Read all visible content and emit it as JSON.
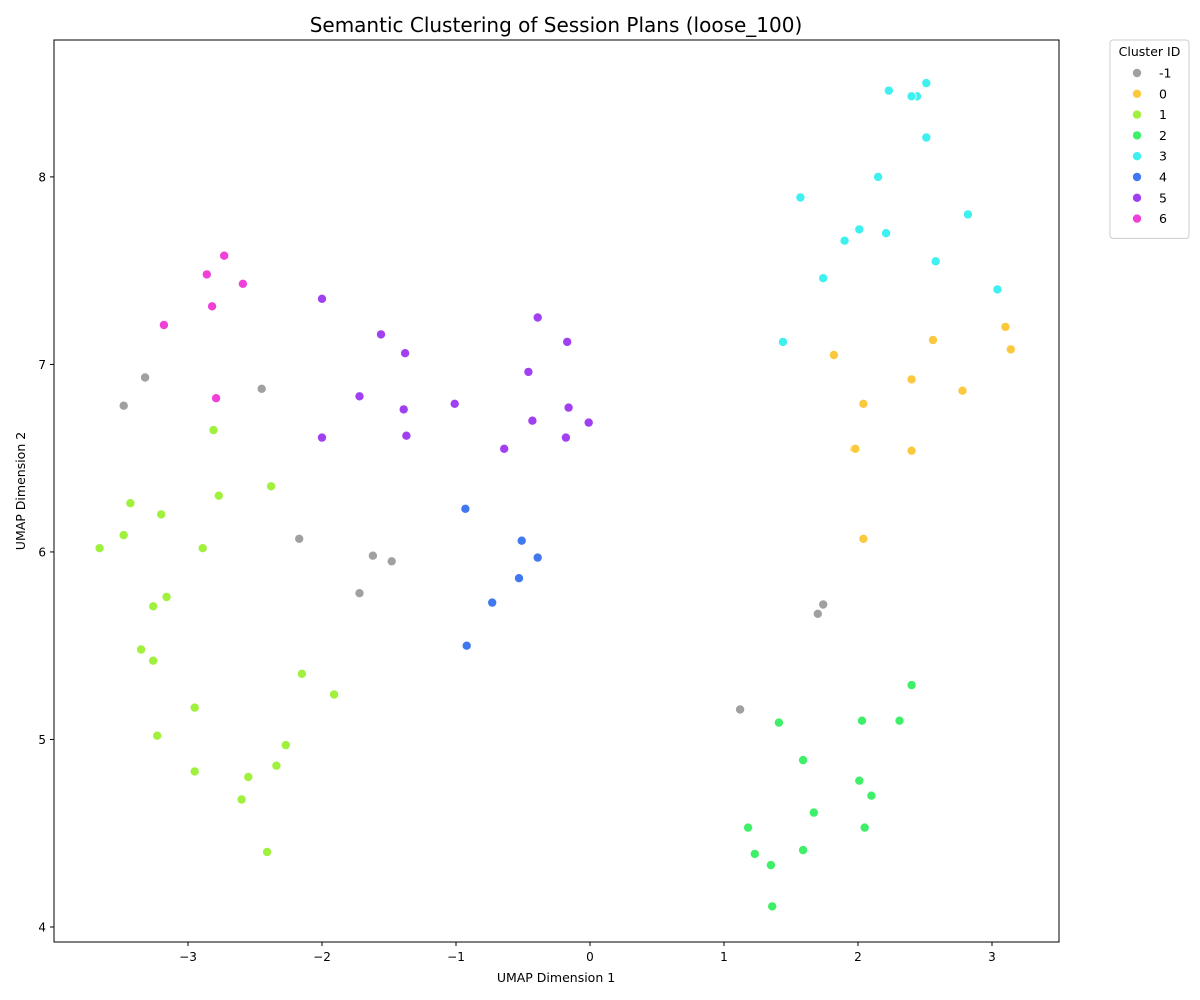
{
  "chart_data": {
    "type": "scatter",
    "title": "Semantic Clustering of Session Plans (loose_100)",
    "xlabel": "UMAP Dimension 1",
    "ylabel": "UMAP Dimension 2",
    "xlim": [
      -4.0,
      3.5
    ],
    "ylim": [
      3.92,
      8.73
    ],
    "xticks": [
      -3,
      -2,
      -1,
      0,
      1,
      2,
      3
    ],
    "yticks": [
      4,
      5,
      6,
      7,
      8
    ],
    "grid": false,
    "legend": {
      "title": "Cluster ID",
      "placement": "outside-top-right"
    },
    "series": [
      {
        "name": "-1",
        "color": "#a0a0a0",
        "points": [
          [
            -3.48,
            6.78
          ],
          [
            -3.32,
            6.93
          ],
          [
            -2.45,
            6.87
          ],
          [
            -2.17,
            6.07
          ],
          [
            -1.62,
            5.98
          ],
          [
            -1.48,
            5.95
          ],
          [
            -1.72,
            5.78
          ],
          [
            1.74,
            5.72
          ],
          [
            1.7,
            5.67
          ],
          [
            1.12,
            5.16
          ]
        ]
      },
      {
        "name": "0",
        "color": "#fbc83e",
        "points": [
          [
            3.1,
            7.2
          ],
          [
            3.14,
            7.08
          ],
          [
            2.56,
            7.13
          ],
          [
            1.82,
            7.05
          ],
          [
            2.4,
            6.92
          ],
          [
            2.78,
            6.86
          ],
          [
            2.04,
            6.79
          ],
          [
            1.97,
            6.55
          ],
          [
            1.98,
            6.55
          ],
          [
            2.4,
            6.54
          ],
          [
            2.04,
            6.07
          ]
        ]
      },
      {
        "name": "1",
        "color": "#a0f03e",
        "points": [
          [
            -2.81,
            6.65
          ],
          [
            -2.38,
            6.35
          ],
          [
            -2.77,
            6.3
          ],
          [
            -3.43,
            6.26
          ],
          [
            -3.2,
            6.2
          ],
          [
            -3.48,
            6.09
          ],
          [
            -3.66,
            6.02
          ],
          [
            -2.89,
            6.02
          ],
          [
            -3.16,
            5.76
          ],
          [
            -3.26,
            5.71
          ],
          [
            -3.35,
            5.48
          ],
          [
            -3.26,
            5.42
          ],
          [
            -2.15,
            5.35
          ],
          [
            -1.91,
            5.24
          ],
          [
            -2.95,
            5.17
          ],
          [
            -3.23,
            5.02
          ],
          [
            -2.27,
            4.97
          ],
          [
            -2.34,
            4.86
          ],
          [
            -2.95,
            4.83
          ],
          [
            -2.55,
            4.8
          ],
          [
            -2.6,
            4.68
          ],
          [
            -2.41,
            4.4
          ]
        ]
      },
      {
        "name": "2",
        "color": "#3ef068",
        "points": [
          [
            2.4,
            5.29
          ],
          [
            2.31,
            5.1
          ],
          [
            2.03,
            5.1
          ],
          [
            1.41,
            5.09
          ],
          [
            1.59,
            4.89
          ],
          [
            2.01,
            4.78
          ],
          [
            2.1,
            4.7
          ],
          [
            1.67,
            4.61
          ],
          [
            1.18,
            4.53
          ],
          [
            2.05,
            4.53
          ],
          [
            1.59,
            4.41
          ],
          [
            1.23,
            4.39
          ],
          [
            1.35,
            4.33
          ],
          [
            1.36,
            4.11
          ]
        ]
      },
      {
        "name": "3",
        "color": "#3ef0f0",
        "points": [
          [
            2.51,
            8.5
          ],
          [
            2.23,
            8.46
          ],
          [
            2.44,
            8.43
          ],
          [
            2.4,
            8.43
          ],
          [
            2.51,
            8.21
          ],
          [
            2.15,
            8.0
          ],
          [
            1.57,
            7.89
          ],
          [
            2.82,
            7.8
          ],
          [
            2.01,
            7.72
          ],
          [
            2.21,
            7.7
          ],
          [
            1.9,
            7.66
          ],
          [
            2.58,
            7.55
          ],
          [
            1.74,
            7.46
          ],
          [
            3.04,
            7.4
          ],
          [
            1.44,
            7.12
          ]
        ]
      },
      {
        "name": "4",
        "color": "#4078f0",
        "points": [
          [
            -0.93,
            6.23
          ],
          [
            -0.51,
            6.06
          ],
          [
            -0.39,
            5.97
          ],
          [
            -0.53,
            5.86
          ],
          [
            -0.73,
            5.73
          ],
          [
            -0.92,
            5.5
          ]
        ]
      },
      {
        "name": "5",
        "color": "#a040f0",
        "points": [
          [
            -2.0,
            7.35
          ],
          [
            -0.39,
            7.25
          ],
          [
            -1.56,
            7.16
          ],
          [
            -0.17,
            7.12
          ],
          [
            -1.38,
            7.06
          ],
          [
            -0.46,
            6.96
          ],
          [
            -1.72,
            6.83
          ],
          [
            -1.01,
            6.79
          ],
          [
            -1.39,
            6.76
          ],
          [
            -0.16,
            6.77
          ],
          [
            -0.43,
            6.7
          ],
          [
            -0.01,
            6.69
          ],
          [
            -1.37,
            6.62
          ],
          [
            -2.0,
            6.61
          ],
          [
            -0.18,
            6.61
          ],
          [
            -0.64,
            6.55
          ]
        ]
      },
      {
        "name": "6",
        "color": "#f040d8",
        "points": [
          [
            -2.73,
            7.58
          ],
          [
            -2.86,
            7.48
          ],
          [
            -2.59,
            7.43
          ],
          [
            -2.82,
            7.31
          ],
          [
            -3.18,
            7.21
          ],
          [
            -2.79,
            6.82
          ]
        ]
      }
    ]
  }
}
